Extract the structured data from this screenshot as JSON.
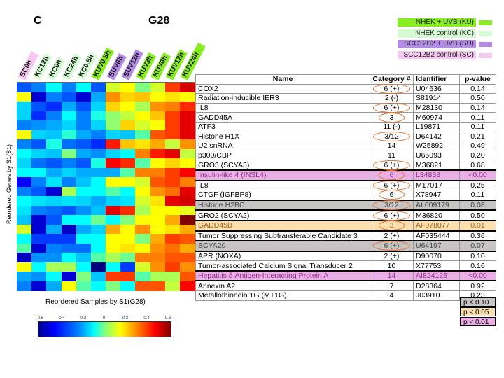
{
  "panel_letter": "C",
  "panel_title": "G28",
  "legend": [
    {
      "label": "NHEK + UVB (KU)",
      "color": "#88ee22"
    },
    {
      "label": "NHEK control (KC)",
      "color": "#d4fbd4"
    },
    {
      "label": "SCC12B2 + UVB (SU)",
      "color": "#b48be8"
    },
    {
      "label": "SCC12B2 control (SC)",
      "color": "#f5c8f0"
    }
  ],
  "chart_data": {
    "type": "heatmap",
    "title": "G28",
    "xlabel": "Reordered Samples by S1(G28)",
    "ylabel": "Reordered Genes by S1(S1)",
    "columns": [
      {
        "label": "SC0h",
        "group": "SC"
      },
      {
        "label": "KC12h",
        "group": "KC"
      },
      {
        "label": "KC0h",
        "group": "KC"
      },
      {
        "label": "KC24h",
        "group": "KC"
      },
      {
        "label": "KC0.5h",
        "group": "KC"
      },
      {
        "label": "KUV0.5h",
        "group": "KU"
      },
      {
        "label": "SUV6h",
        "group": "SU"
      },
      {
        "label": "SUV12h",
        "group": "SU"
      },
      {
        "label": "KUV3h",
        "group": "KU"
      },
      {
        "label": "KUV6h",
        "group": "KU"
      },
      {
        "label": "KUV12h",
        "group": "KU"
      },
      {
        "label": "KUV24h",
        "group": "KU"
      }
    ],
    "colorbar": {
      "range": [
        -0.6,
        0.6
      ],
      "ticks": [
        "-0.6",
        "-0.4",
        "-0.2",
        "0",
        "0.2",
        "0.4",
        "0.6"
      ]
    },
    "values": [
      [
        -0.35,
        -0.3,
        -0.15,
        -0.3,
        -0.15,
        -0.35,
        0.1,
        0.15,
        0.0,
        0.1,
        0.38,
        0.5
      ],
      [
        0.15,
        -0.5,
        -0.3,
        -0.35,
        -0.5,
        -0.25,
        0.28,
        0.2,
        0.22,
        0.15,
        0.18,
        0.15
      ],
      [
        -0.2,
        -0.35,
        -0.4,
        -0.25,
        -0.35,
        -0.2,
        0.2,
        0.15,
        0.05,
        0.28,
        0.3,
        0.4
      ],
      [
        -0.2,
        -0.4,
        -0.3,
        -0.15,
        -0.3,
        -0.12,
        0.02,
        0.08,
        0.15,
        0.22,
        0.38,
        0.48
      ],
      [
        -0.3,
        -0.28,
        -0.25,
        -0.2,
        -0.3,
        -0.2,
        0.02,
        0.2,
        0.1,
        0.15,
        0.38,
        0.48
      ],
      [
        0.15,
        -0.2,
        -0.22,
        -0.1,
        -0.25,
        -0.3,
        -0.2,
        -0.22,
        -0.05,
        0.35,
        0.38,
        0.48
      ],
      [
        -0.3,
        -0.35,
        -0.12,
        -0.32,
        -0.35,
        -0.4,
        0.42,
        0.22,
        0.18,
        0.25,
        0.08,
        0.28
      ],
      [
        -0.15,
        -0.2,
        -0.22,
        0.0,
        -0.25,
        -0.28,
        -0.2,
        -0.15,
        0.3,
        0.42,
        0.48,
        0.08
      ],
      [
        -0.2,
        -0.32,
        -0.35,
        -0.3,
        -0.35,
        -0.12,
        0.45,
        0.4,
        -0.05,
        0.15,
        0.2,
        0.15
      ],
      [
        -0.15,
        -0.15,
        -0.25,
        -0.2,
        -0.25,
        -0.25,
        -0.25,
        -0.05,
        0.3,
        0.3,
        0.38,
        0.45
      ],
      [
        -0.45,
        -0.3,
        -0.18,
        -0.3,
        -0.22,
        -0.15,
        0.15,
        0.15,
        0.1,
        0.35,
        0.38,
        0.3
      ],
      [
        -0.3,
        -0.35,
        -0.5,
        0.05,
        -0.15,
        -0.15,
        -0.05,
        -0.15,
        0.15,
        0.28,
        0.32,
        0.48
      ],
      [
        -0.15,
        -0.18,
        -0.2,
        -0.18,
        -0.2,
        -0.25,
        -0.2,
        -0.18,
        0.1,
        0.18,
        0.48,
        0.5
      ],
      [
        -0.18,
        -0.3,
        -0.32,
        -0.35,
        -0.28,
        -0.22,
        0.48,
        0.4,
        0.05,
        0.15,
        0.15,
        0.12
      ],
      [
        -0.22,
        -0.5,
        -0.35,
        -0.15,
        -0.15,
        -0.02,
        -0.15,
        0.0,
        0.15,
        0.15,
        0.25,
        0.6
      ],
      [
        0.1,
        -0.5,
        -0.25,
        -0.52,
        -0.25,
        -0.2,
        0.25,
        0.15,
        0.28,
        0.15,
        0.18,
        0.25
      ],
      [
        -0.15,
        -0.38,
        -0.38,
        -0.38,
        -0.15,
        -0.15,
        0.15,
        0.15,
        0.0,
        0.25,
        0.38,
        0.35
      ],
      [
        -0.05,
        -0.5,
        -0.3,
        -0.32,
        -0.32,
        -0.15,
        0.15,
        0.18,
        0.15,
        0.28,
        0.32,
        0.25
      ],
      [
        -0.52,
        -0.28,
        -0.28,
        -0.15,
        -0.22,
        -0.05,
        0.05,
        -0.02,
        0.3,
        0.3,
        0.35,
        0.35
      ],
      [
        0.15,
        -0.15,
        0.05,
        0.05,
        -0.15,
        -0.6,
        -0.15,
        -0.38,
        0.1,
        0.28,
        0.38,
        0.28
      ],
      [
        -0.25,
        -0.28,
        -0.15,
        -0.5,
        0.0,
        -0.22,
        0.38,
        0.38,
        -0.05,
        0.05,
        0.05,
        0.35
      ],
      [
        -0.3,
        -0.5,
        -0.25,
        0.15,
        -0.05,
        -0.15,
        0.0,
        -0.15,
        0.35,
        0.35,
        0.08,
        0.45
      ]
    ]
  },
  "table": {
    "headers": [
      "Name",
      "Category #",
      "Identifier",
      "p-value"
    ],
    "rows": [
      {
        "name": "COX2",
        "cat": "6 (+)",
        "id": "U04636",
        "p": "0.14",
        "circled": true,
        "hl": ""
      },
      {
        "name": "Radiation-inducible IER3",
        "cat": "2 (-)",
        "id": "S81914",
        "p": "0.50",
        "circled": false,
        "hl": ""
      },
      {
        "name": "IL8",
        "cat": "6 (+)",
        "id": "M28130",
        "p": "0.14",
        "circled": true,
        "hl": ""
      },
      {
        "name": "GADD45A",
        "cat": "3",
        "id": "M60974",
        "p": "0.11",
        "circled": true,
        "hl": ""
      },
      {
        "name": "ATF3",
        "cat": "11 (-)",
        "id": "L19871",
        "p": "0.11",
        "circled": false,
        "hl": ""
      },
      {
        "name": "Histone H1X",
        "cat": "3/12",
        "id": "D64142",
        "p": "0.21",
        "circled": true,
        "hl": ""
      },
      {
        "name": "U2 snRNA",
        "cat": "14",
        "id": "W25892",
        "p": "0.49",
        "circled": false,
        "hl": ""
      },
      {
        "name": "p300/CBP",
        "cat": "11",
        "id": "U65093",
        "p": "0.20",
        "circled": false,
        "hl": ""
      },
      {
        "name": "GRO3 (SCYA3)",
        "cat": "6 (+)",
        "id": "M36821",
        "p": "0.68",
        "circled": true,
        "hl": ""
      },
      {
        "name": "Insulin-like 4 (INSL4)",
        "cat": "6",
        "id": "L34838",
        "p": "<0.00",
        "circled": true,
        "hl": "p01"
      },
      {
        "name": "IL8",
        "cat": "6 (+)",
        "id": "M17017",
        "p": "0.25",
        "circled": true,
        "hl": ""
      },
      {
        "name": "CTGF (IGFBP8)",
        "cat": "6",
        "id": "X78947",
        "p": "0.11",
        "circled": true,
        "hl": ""
      },
      {
        "name": "Histone H2BC",
        "cat": "3/12",
        "id": "AL009179",
        "p": "0.08",
        "circled": true,
        "hl": "p10"
      },
      {
        "name": "GRO2 (SCYA2)",
        "cat": "6 (+)",
        "id": "M36820",
        "p": "0.50",
        "circled": true,
        "hl": ""
      },
      {
        "name": "GADD45B",
        "cat": "3",
        "id": "AF078077",
        "p": "0.01",
        "circled": true,
        "hl": "p05"
      },
      {
        "name": "Tumor Suppressing Subtransferable Candidate 3",
        "cat": "2 (+)",
        "id": "AF035444",
        "p": "0.36",
        "circled": false,
        "hl": ""
      },
      {
        "name": "SCYA20",
        "cat": "6 (+)",
        "id": "U64197",
        "p": "0.07",
        "circled": true,
        "hl": "p10"
      },
      {
        "name": "APR (NOXA)",
        "cat": "2 (+)",
        "id": "D90070",
        "p": "0.10",
        "circled": false,
        "hl": ""
      },
      {
        "name": "Tumor-associated Calcium Signal Transducer 2",
        "cat": "10",
        "id": "X77753",
        "p": "0.16",
        "circled": false,
        "hl": ""
      },
      {
        "name": "Hepatitis δ Antigen-Interacting Protein A",
        "cat": "14",
        "id": "AI824126",
        "p": "<0.00",
        "circled": false,
        "hl": "p01"
      },
      {
        "name": "Annexin A2",
        "cat": "7",
        "id": "D28364",
        "p": "0.92",
        "circled": false,
        "hl": ""
      },
      {
        "name": "Metallothionein 1G (MT1G)",
        "cat": "4",
        "id": "J03910",
        "p": "0.23",
        "circled": false,
        "hl": ""
      }
    ]
  },
  "p_legend": [
    {
      "key": "p10",
      "label": "p < 0.10",
      "color": "#c8c4c4",
      "text": "#444"
    },
    {
      "key": "p05",
      "label": "p < 0.05",
      "color": "#fde0b0",
      "text": "#a0621e"
    },
    {
      "key": "p01",
      "label": "p < 0.01",
      "color": "#eab0e6",
      "text": "#8a2a8a"
    }
  ]
}
